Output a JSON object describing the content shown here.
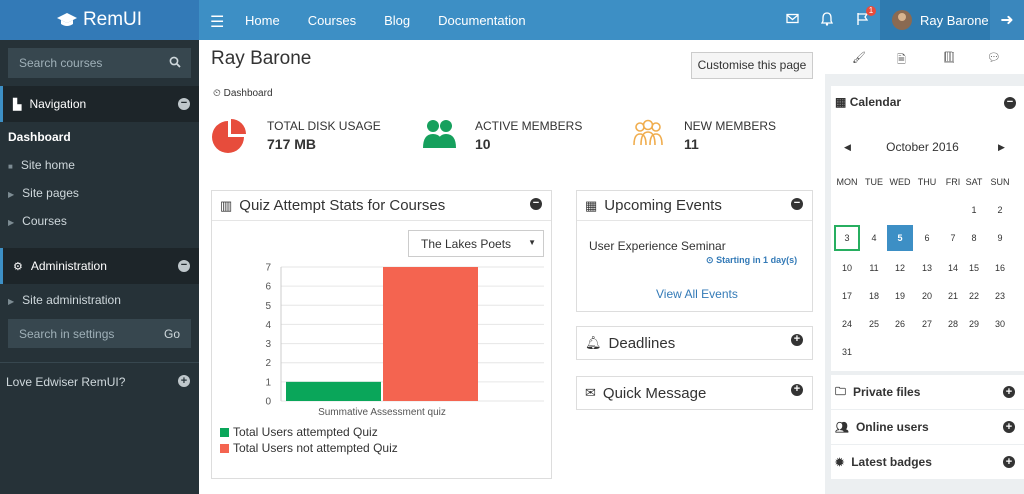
{
  "brand": {
    "name": "RemUI"
  },
  "topnav": {
    "items": [
      "Home",
      "Courses",
      "Blog",
      "Documentation"
    ],
    "notification_count": "1",
    "user_name": "Ray Barone"
  },
  "sidebar": {
    "search_placeholder": "Search courses",
    "navigation": {
      "title": "Navigation",
      "items": [
        {
          "label": "Dashboard"
        },
        {
          "label": "Site home"
        },
        {
          "label": "Site pages"
        },
        {
          "label": "Courses"
        }
      ]
    },
    "administration": {
      "title": "Administration",
      "items": [
        {
          "label": "Site administration"
        }
      ]
    },
    "settings_search_placeholder": "Search in settings",
    "settings_go": "Go",
    "promo": "Love Edwiser RemUI?"
  },
  "page": {
    "title": "Ray Barone",
    "customise_label": "Customise this page",
    "breadcrumb": "Dashboard"
  },
  "stats": [
    {
      "label": "TOTAL DISK USAGE",
      "value": "717 MB",
      "color": "#e74c3c"
    },
    {
      "label": "ACTIVE MEMBERS",
      "value": "10",
      "color": "#16a05d"
    },
    {
      "label": "NEW MEMBERS",
      "value": "11",
      "color": "#f0ad4e"
    }
  ],
  "quiz_panel": {
    "title": "Quiz Attempt Stats for Courses",
    "course_select": "The Lakes Poets"
  },
  "chart_data": {
    "type": "bar",
    "categories": [
      "Summative Assessment quiz"
    ],
    "series": [
      {
        "name": "Total Users attempted Quiz",
        "values": [
          1
        ],
        "color": "#0aa65a"
      },
      {
        "name": "Total Users not attempted Quiz",
        "values": [
          7
        ],
        "color": "#f46450"
      }
    ],
    "ylim": [
      0,
      7
    ],
    "yticks": [
      0,
      1,
      2,
      3,
      4,
      5,
      6,
      7
    ],
    "grid": true,
    "legend": "bottom"
  },
  "events_panel": {
    "title": "Upcoming Events",
    "event_name": "User Experience Seminar",
    "event_note": "Starting in 1 day(s)",
    "view_all": "View All Events"
  },
  "deadlines_panel": {
    "title": "Deadlines"
  },
  "message_panel": {
    "title": "Quick Message"
  },
  "calendar": {
    "title": "Calendar",
    "month": "October 2016",
    "weekdays": [
      "MON",
      "TUE",
      "WED",
      "THU",
      "FRI",
      "SAT",
      "SUN"
    ],
    "days_in_month": 31,
    "first_weekday_index": 5,
    "today": 3,
    "event_day": 5
  },
  "right_blocks": [
    "Private files",
    "Online users",
    "Latest badges"
  ]
}
